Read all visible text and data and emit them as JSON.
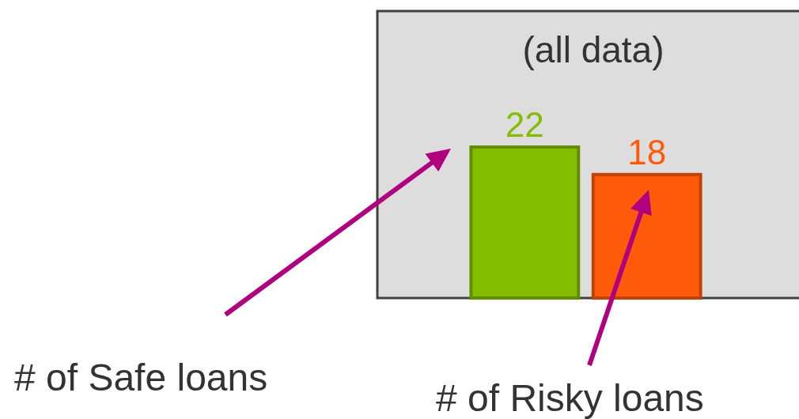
{
  "chart_data": {
    "type": "bar",
    "title": "(all data)",
    "categories": [
      null,
      null
    ],
    "values": [
      22,
      18
    ],
    "colors": [
      "#84bd00",
      "#ff5a0a"
    ],
    "data_labels": true,
    "annotations": [
      "# of Safe loans",
      "# of Risky loans"
    ]
  }
}
